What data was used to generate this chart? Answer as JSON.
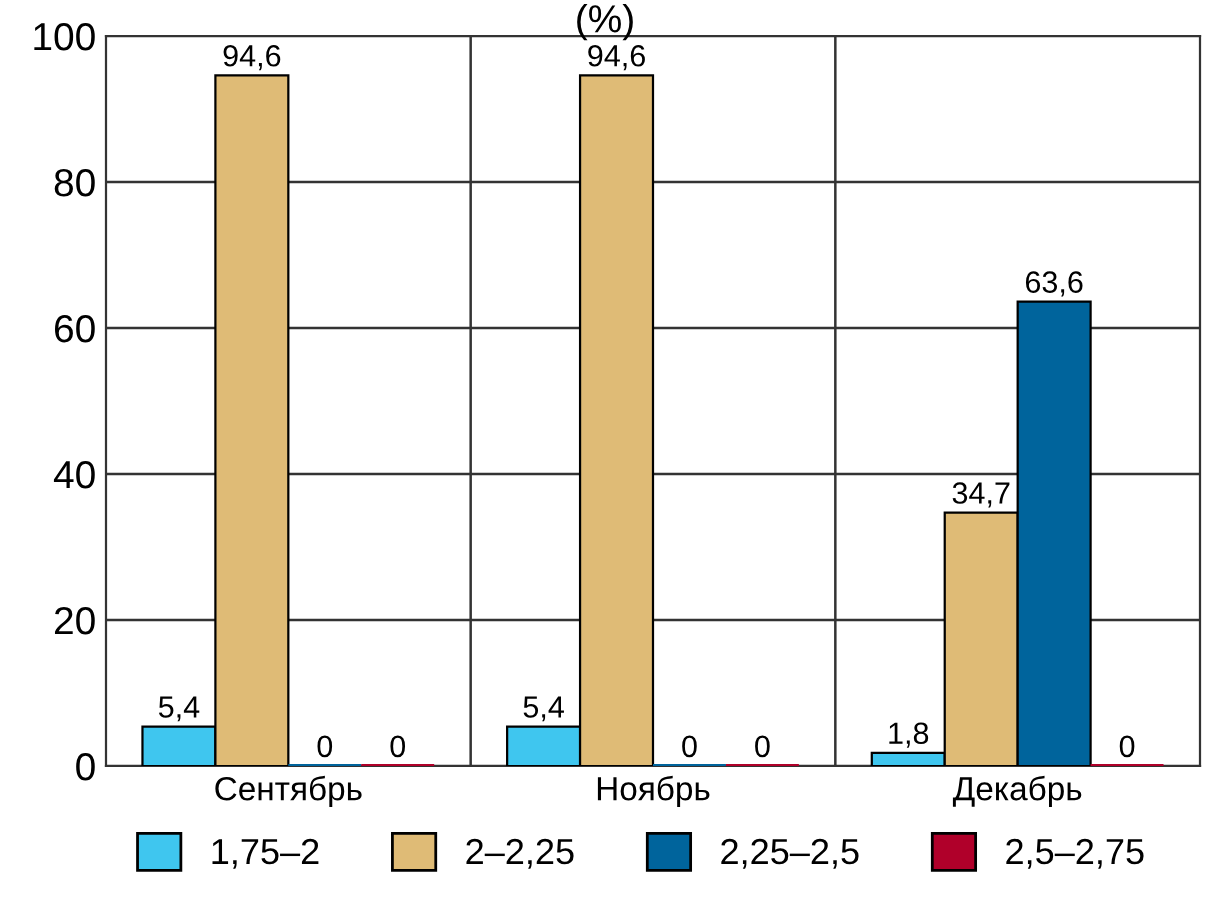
{
  "chart_data": {
    "type": "bar",
    "title": "(%)",
    "categories": [
      "Сентябрь",
      "Ноябрь",
      "Декабрь"
    ],
    "series": [
      {
        "name": "1,75–2",
        "color": "#3fc6ef",
        "values": [
          5.4,
          5.4,
          1.8
        ],
        "value_labels": [
          "5,4",
          "5,4",
          "1,8"
        ]
      },
      {
        "name": "2–2,25",
        "color": "#dfbb76",
        "values": [
          94.6,
          94.6,
          34.7
        ],
        "value_labels": [
          "94,6",
          "94,6",
          "34,7"
        ]
      },
      {
        "name": "2,25–2,5",
        "color": "#00649c",
        "values": [
          0,
          0,
          63.6
        ],
        "value_labels": [
          "0",
          "0",
          "63,6"
        ]
      },
      {
        "name": "2,5–2,75",
        "color": "#b0002a",
        "values": [
          0,
          0,
          0
        ],
        "value_labels": [
          "0",
          "0",
          "0"
        ]
      }
    ],
    "ylim": [
      0,
      100
    ],
    "yticks": [
      0,
      20,
      40,
      60,
      80,
      100
    ],
    "grid": true,
    "legend": "bottom"
  }
}
